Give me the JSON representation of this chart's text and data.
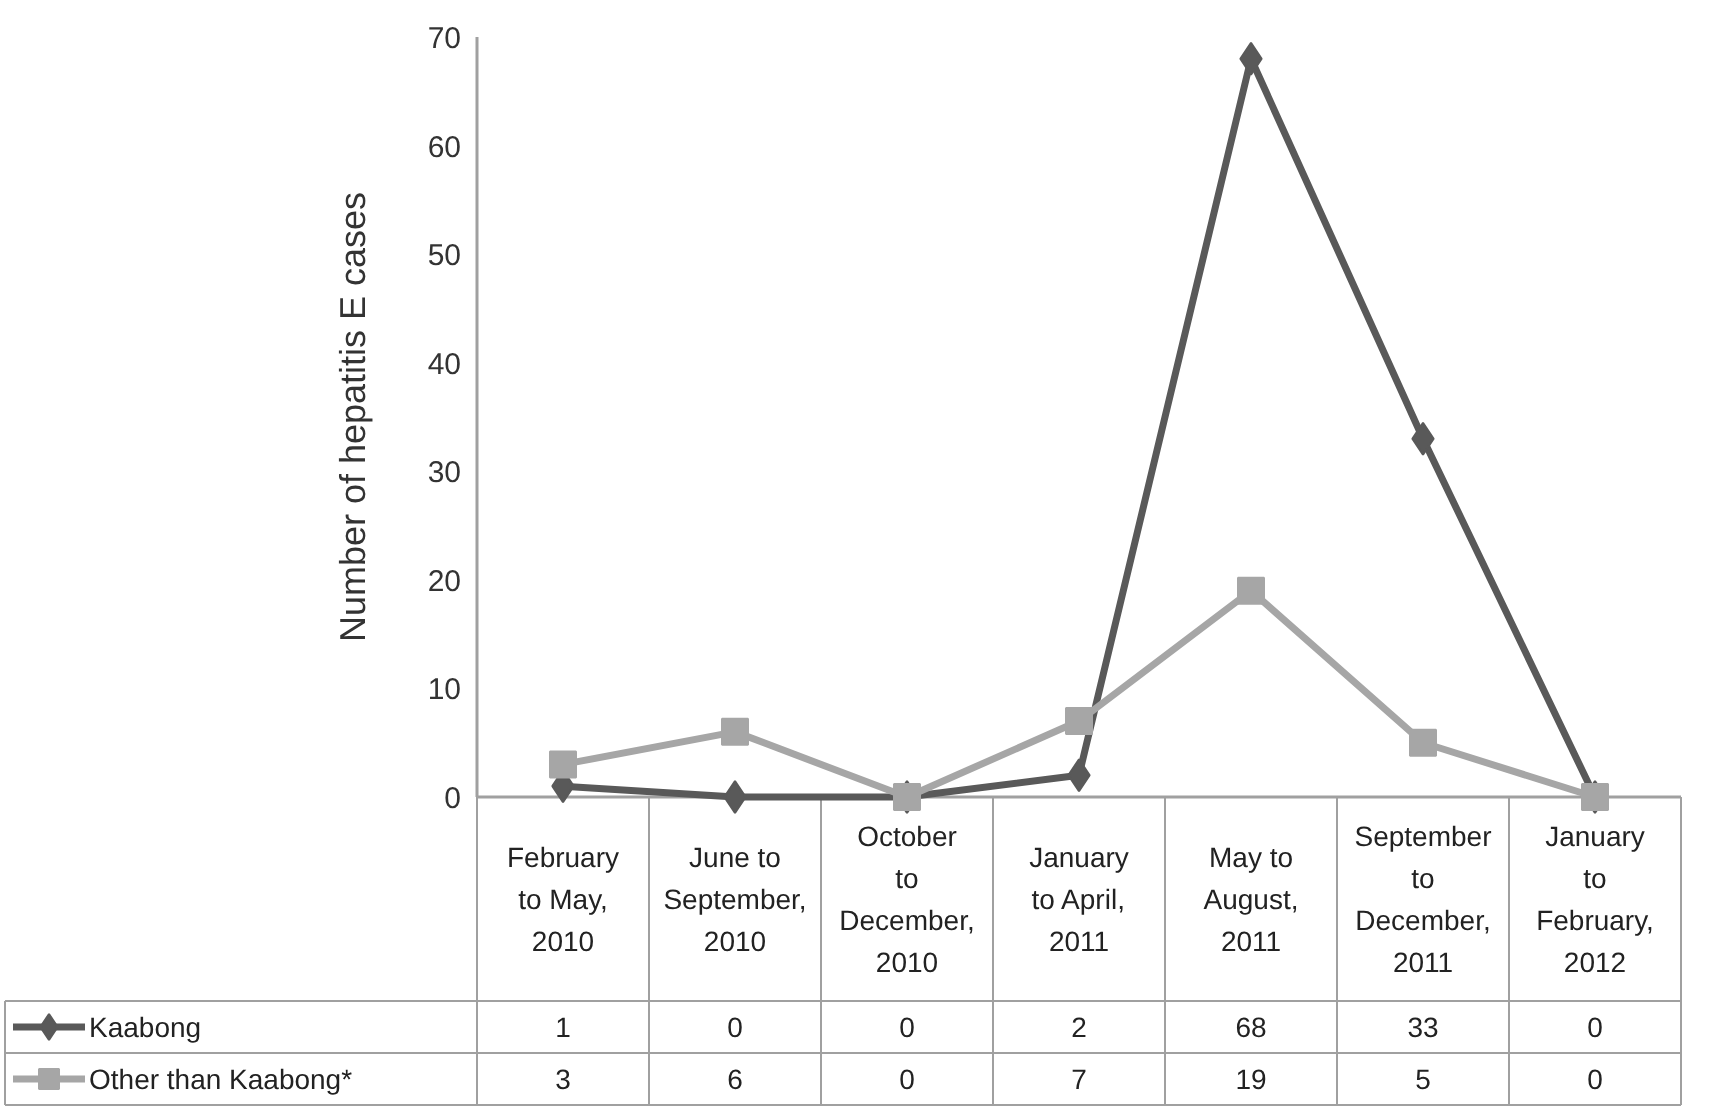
{
  "chart_data": {
    "type": "line",
    "ylabel": "Number of hepatitis E cases",
    "categories": [
      "February to May, 2010",
      "June to September, 2010",
      "October to December, 2010",
      "January to April, 2011",
      "May to August, 2011",
      "September to December, 2011",
      "January to February, 2012"
    ],
    "series": [
      {
        "name": "Kaabong",
        "color": "#595959",
        "marker": "diamond",
        "values": [
          1,
          0,
          0,
          2,
          68,
          33,
          0
        ]
      },
      {
        "name": "Other than Kaabong*",
        "color": "#a6a6a6",
        "marker": "square",
        "values": [
          3,
          6,
          0,
          7,
          19,
          5,
          0
        ]
      }
    ],
    "ylim": [
      0,
      70
    ],
    "yticks": [
      0,
      10,
      20,
      30,
      40,
      50,
      60,
      70
    ],
    "grid": false,
    "legend": "bottom",
    "data_labels": true,
    "tick_labels": "y",
    "line_style": "solid"
  }
}
